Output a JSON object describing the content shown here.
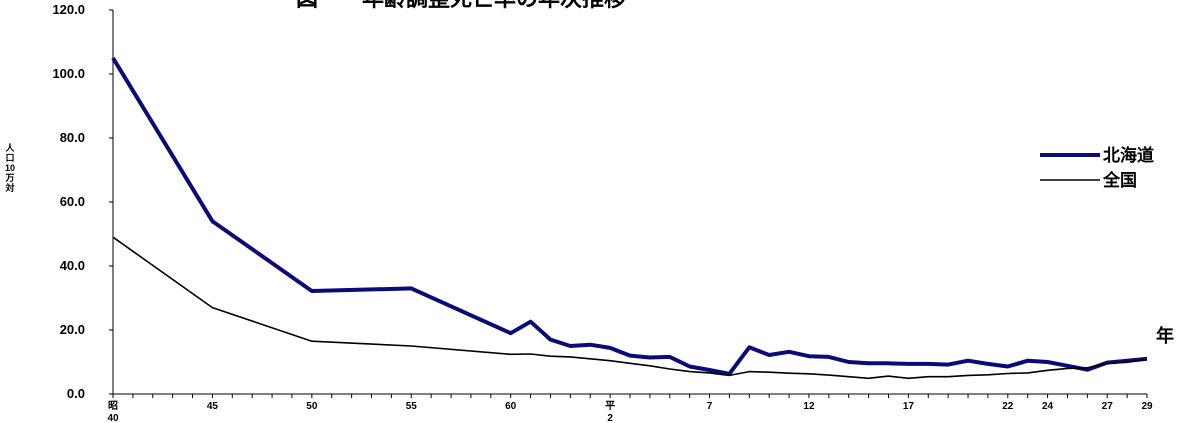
{
  "chart_data": {
    "type": "line",
    "title": "図　　年齢調整死亡率の年次推移",
    "ylabel": "人口10万対",
    "xunit": "年",
    "ylim": [
      0,
      120
    ],
    "y_ticks": [
      "0.0",
      "20.0",
      "40.0",
      "60.0",
      "80.0",
      "100.0",
      "120.0"
    ],
    "x_tick_labels": [
      {
        "year": 1965,
        "label": "昭",
        "sub": "40"
      },
      {
        "year": 1970,
        "label": "45"
      },
      {
        "year": 1975,
        "label": "50"
      },
      {
        "year": 1980,
        "label": "55"
      },
      {
        "year": 1985,
        "label": "60"
      },
      {
        "year": 1990,
        "label": "平",
        "sub": "2"
      },
      {
        "year": 1995,
        "label": "7"
      },
      {
        "year": 2000,
        "label": "12"
      },
      {
        "year": 2005,
        "label": "17"
      },
      {
        "year": 2010,
        "label": "22"
      },
      {
        "year": 2012,
        "label": "24"
      },
      {
        "year": 2015,
        "label": "27"
      },
      {
        "year": 2017,
        "label": "29"
      }
    ],
    "legend_position": "right",
    "series": [
      {
        "name": "北海道",
        "color": "#0a0a78",
        "points": [
          [
            1965,
            105.0
          ],
          [
            1970,
            54.0
          ],
          [
            1975,
            32.2
          ],
          [
            1980,
            33.0
          ],
          [
            1985,
            19.0
          ],
          [
            1986,
            22.6
          ],
          [
            1987,
            17.0
          ],
          [
            1988,
            15.0
          ],
          [
            1989,
            15.4
          ],
          [
            1990,
            14.4
          ],
          [
            1991,
            12.0
          ],
          [
            1992,
            11.4
          ],
          [
            1993,
            11.6
          ],
          [
            1994,
            8.6
          ],
          [
            1995,
            7.5
          ],
          [
            1996,
            6.3
          ],
          [
            1997,
            14.6
          ],
          [
            1998,
            12.2
          ],
          [
            1999,
            13.2
          ],
          [
            2000,
            11.8
          ],
          [
            2001,
            11.6
          ],
          [
            2002,
            10.0
          ],
          [
            2003,
            9.6
          ],
          [
            2004,
            9.6
          ],
          [
            2005,
            9.4
          ],
          [
            2006,
            9.4
          ],
          [
            2007,
            9.2
          ],
          [
            2008,
            10.4
          ],
          [
            2009,
            9.4
          ],
          [
            2010,
            8.6
          ],
          [
            2011,
            10.4
          ],
          [
            2012,
            10.0
          ],
          [
            2013,
            8.8
          ],
          [
            2014,
            7.6
          ],
          [
            2015,
            9.8
          ],
          [
            2016,
            10.4
          ],
          [
            2017,
            11.0
          ]
        ]
      },
      {
        "name": "全国",
        "color": "#000000",
        "points": [
          [
            1965,
            49.0
          ],
          [
            1970,
            27.0
          ],
          [
            1975,
            16.5
          ],
          [
            1980,
            15.0
          ],
          [
            1985,
            12.4
          ],
          [
            1986,
            12.5
          ],
          [
            1987,
            11.8
          ],
          [
            1988,
            11.6
          ],
          [
            1989,
            11.0
          ],
          [
            1990,
            10.4
          ],
          [
            1991,
            9.6
          ],
          [
            1992,
            8.8
          ],
          [
            1993,
            7.8
          ],
          [
            1994,
            7.0
          ],
          [
            1995,
            6.6
          ],
          [
            1996,
            5.8
          ],
          [
            1997,
            7.0
          ],
          [
            1998,
            6.8
          ],
          [
            1999,
            6.5
          ],
          [
            2000,
            6.3
          ],
          [
            2001,
            5.9
          ],
          [
            2002,
            5.4
          ],
          [
            2003,
            4.9
          ],
          [
            2004,
            5.6
          ],
          [
            2005,
            4.9
          ],
          [
            2006,
            5.4
          ],
          [
            2007,
            5.4
          ],
          [
            2008,
            5.8
          ],
          [
            2009,
            6.0
          ],
          [
            2010,
            6.4
          ],
          [
            2011,
            6.6
          ],
          [
            2012,
            7.4
          ],
          [
            2013,
            8.0
          ],
          [
            2014,
            8.2
          ],
          [
            2015,
            9.6
          ],
          [
            2016,
            9.9
          ],
          [
            2017,
            10.8
          ]
        ]
      }
    ]
  }
}
